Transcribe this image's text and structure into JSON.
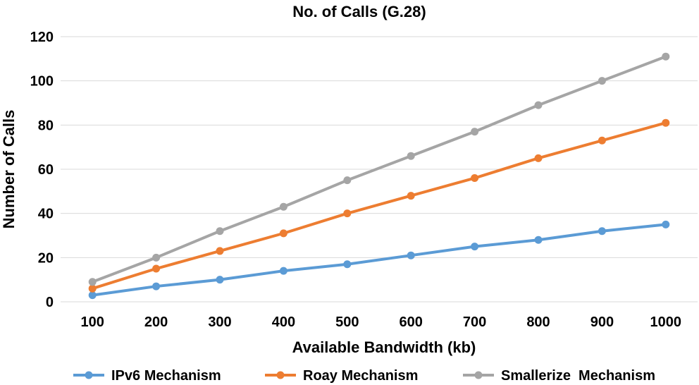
{
  "chart_data": {
    "type": "line",
    "title": "No. of Calls (G.28)",
    "xlabel": "Available Bandwidth (kb)",
    "ylabel": "Number of Calls",
    "categories": [
      "100",
      "200",
      "300",
      "400",
      "500",
      "600",
      "700",
      "800",
      "900",
      "1000"
    ],
    "ylim": [
      0,
      120
    ],
    "yticks": [
      "0",
      "20",
      "40",
      "60",
      "80",
      "100",
      "120"
    ],
    "grid": true,
    "legend_position": "bottom",
    "series": [
      {
        "name": "IPv6 Mechanism",
        "color": "#5b9bd5",
        "values": [
          3,
          7,
          10,
          14,
          17,
          21,
          25,
          28,
          32,
          35
        ]
      },
      {
        "name": "Roay Mechanism",
        "color": "#ed7d31",
        "values": [
          6,
          15,
          23,
          31,
          40,
          48,
          56,
          65,
          73,
          81
        ]
      },
      {
        "name": "Smallerize  Mechanism",
        "color": "#a5a5a5",
        "values": [
          9,
          20,
          32,
          43,
          55,
          66,
          77,
          89,
          100,
          111
        ]
      }
    ]
  }
}
